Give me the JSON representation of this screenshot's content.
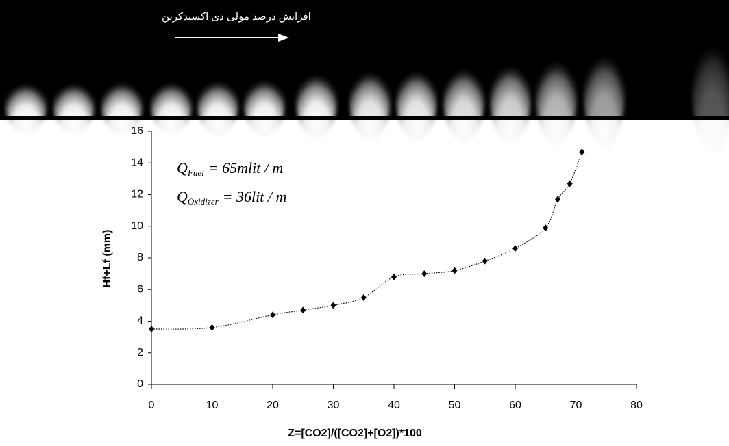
{
  "strip_label": "افزایش درصد مولی دی اکسیدکربن",
  "chart_data": {
    "type": "scatter",
    "xlabel": "Z=[CO2]/([CO2]+[O2])*100",
    "ylabel": "Hf+Lf (mm)",
    "annotations": [
      {
        "symbol": "Q",
        "subscript": "Fuel",
        "text": "= 65mlit / m"
      },
      {
        "symbol": "Q",
        "subscript": "Oxidizer",
        "text": "= 36lit / m"
      }
    ],
    "x": [
      0,
      10,
      20,
      25,
      30,
      35,
      40,
      45,
      50,
      55,
      60,
      65,
      67,
      69,
      71
    ],
    "values": [
      3.5,
      3.6,
      4.4,
      4.7,
      5.0,
      5.5,
      6.8,
      7.0,
      7.2,
      7.8,
      8.6,
      9.9,
      11.7,
      12.7,
      14.7
    ],
    "color": "#000000",
    "xlim": [
      0,
      80
    ],
    "xticks": [
      0,
      10,
      20,
      30,
      40,
      50,
      60,
      70,
      80
    ],
    "ylim": [
      0,
      16
    ],
    "yticks": [
      0,
      2,
      4,
      6,
      8,
      10,
      12,
      14,
      16
    ],
    "grid": false
  }
}
